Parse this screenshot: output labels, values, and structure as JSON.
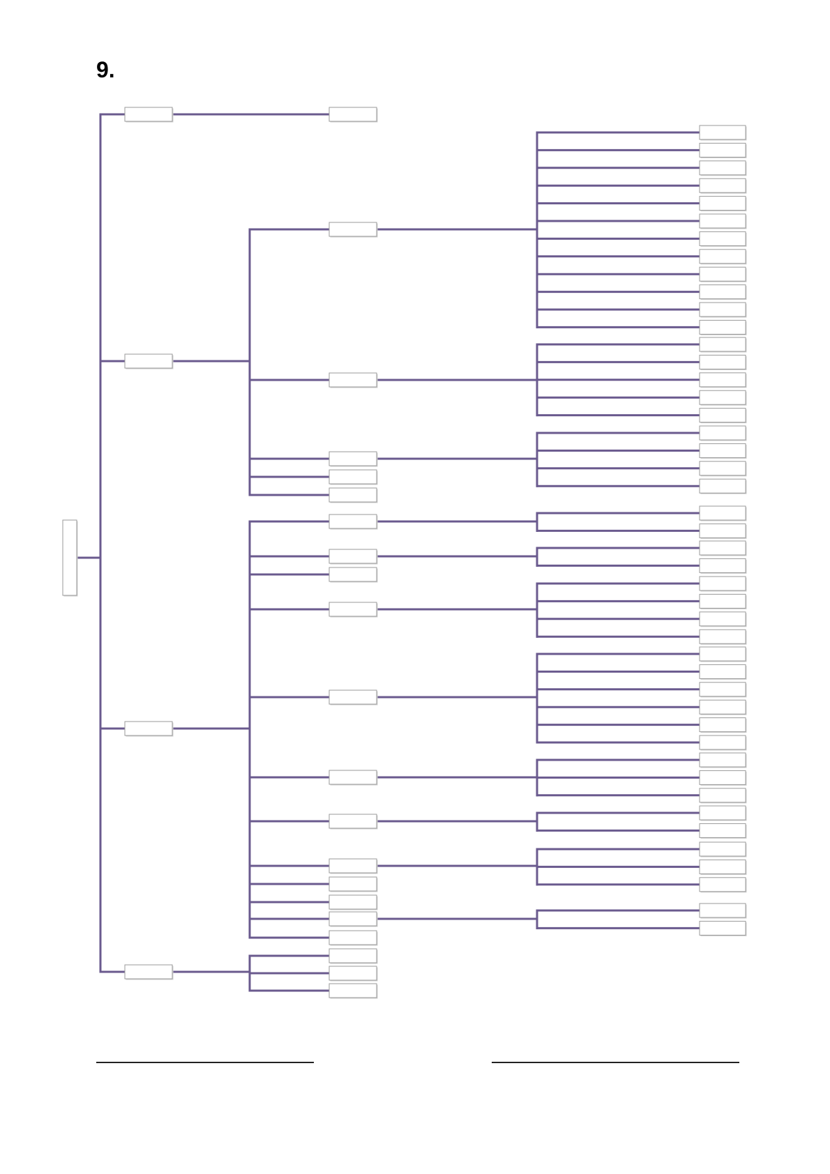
{
  "section_number": "9.",
  "colors": {
    "connector": "#6a5a8e",
    "box_border": "#9a9a9a",
    "box_fill": "#ffffff",
    "box_shadow": "#d0d0d0"
  },
  "tree": {
    "root": "",
    "level1": [
      {
        "label": "",
        "level2": [
          {
            "label": "",
            "leaves": 0
          }
        ]
      },
      {
        "label": "",
        "level2": [
          {
            "label": "",
            "leaves": 12
          },
          {
            "label": "",
            "leaves": 5
          },
          {
            "label": "",
            "leaves": 4
          },
          {
            "label": "",
            "leaves": 0
          },
          {
            "label": "",
            "leaves": 0
          }
        ]
      },
      {
        "label": "",
        "level2": [
          {
            "label": "",
            "leaves": 2
          },
          {
            "label": "",
            "leaves": 2
          },
          {
            "label": "",
            "leaves": 0
          },
          {
            "label": "",
            "leaves": 4
          },
          {
            "label": "",
            "leaves": 6
          },
          {
            "label": "",
            "leaves": 3
          },
          {
            "label": "",
            "leaves": 2
          },
          {
            "label": "",
            "leaves": 3
          },
          {
            "label": "",
            "leaves": 0
          },
          {
            "label": "",
            "leaves": 0
          },
          {
            "label": "",
            "leaves": 2
          },
          {
            "label": "",
            "leaves": 0
          }
        ]
      },
      {
        "label": "",
        "level2": [
          {
            "label": "",
            "leaves": 0
          },
          {
            "label": "",
            "leaves": 0
          },
          {
            "label": "",
            "leaves": 0
          }
        ]
      }
    ]
  },
  "answer_lines": [
    {
      "value": ""
    },
    {
      "value": ""
    }
  ]
}
